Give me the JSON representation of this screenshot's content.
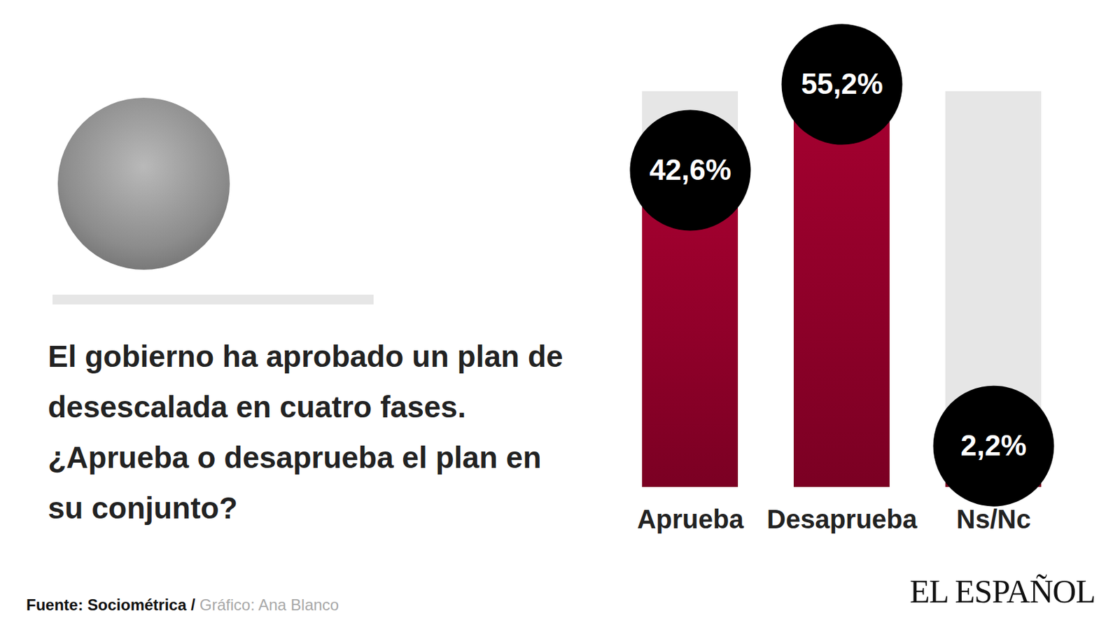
{
  "chart_data": {
    "type": "bar",
    "title": "El gobierno ha aprobado un plan de desescalada en cuatro fases. ¿Aprueba o desaprueba el plan en su conjunto?",
    "categories": [
      "Aprueba",
      "Desaprueba",
      "Ns/Nc"
    ],
    "values": [
      42.6,
      55.2,
      2.2
    ],
    "value_labels": [
      "42,6%",
      "55,2%",
      "2,2%"
    ],
    "data_labels": true,
    "color": "#a3002f",
    "ylim": [
      0,
      58
    ],
    "tick_labels": "x",
    "source": "Fuente: Sociométrica /",
    "credit": "Gráfico: Ana Blanco",
    "publisher": "EL ESPAÑOL"
  }
}
